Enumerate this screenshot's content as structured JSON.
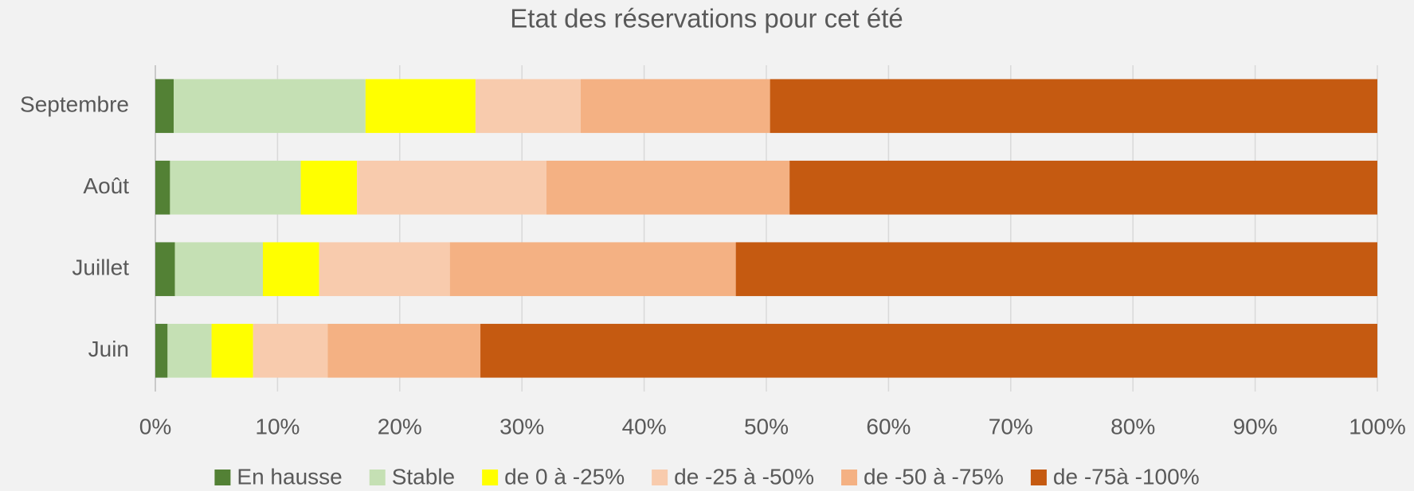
{
  "chart_data": {
    "type": "stacked_barh",
    "title": "Etat des réservations pour cet été",
    "categories": [
      "Juin",
      "Juillet",
      "Août",
      "Septembre"
    ],
    "series": [
      {
        "name": "En hausse",
        "color": "#538135",
        "values": [
          1.0,
          1.6,
          1.2,
          1.5
        ]
      },
      {
        "name": "Stable",
        "color": "#c5e0b4",
        "values": [
          3.6,
          7.2,
          10.7,
          15.7
        ]
      },
      {
        "name": "de 0 à -25%",
        "color": "#ffff00",
        "values": [
          3.4,
          4.6,
          4.6,
          9.0
        ]
      },
      {
        "name": "de -25 à -50%",
        "color": "#f8cbad",
        "values": [
          6.1,
          10.7,
          15.5,
          8.6
        ]
      },
      {
        "name": "de -50 à -75%",
        "color": "#f4b183",
        "values": [
          12.5,
          23.4,
          19.9,
          15.5
        ]
      },
      {
        "name": "de -75à -100%",
        "color": "#c55a11",
        "values": [
          73.4,
          52.5,
          48.1,
          49.7
        ]
      }
    ],
    "xlim": [
      0,
      100
    ],
    "xticks": [
      {
        "value": 0,
        "label": "0%"
      },
      {
        "value": 10,
        "label": "10%"
      },
      {
        "value": 20,
        "label": "20%"
      },
      {
        "value": 30,
        "label": "30%"
      },
      {
        "value": 40,
        "label": "40%"
      },
      {
        "value": 50,
        "label": "50%"
      },
      {
        "value": 60,
        "label": "60%"
      },
      {
        "value": 70,
        "label": "70%"
      },
      {
        "value": 80,
        "label": "80%"
      },
      {
        "value": 90,
        "label": "90%"
      },
      {
        "value": 100,
        "label": "100%"
      }
    ],
    "grid": true,
    "legend": "bottom"
  }
}
